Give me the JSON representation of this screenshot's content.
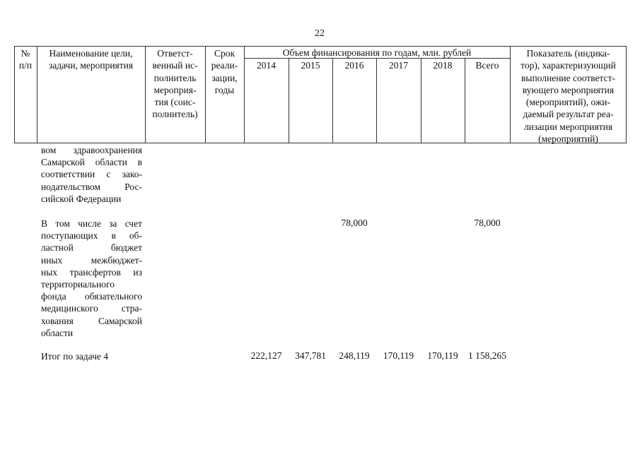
{
  "page_number": "22",
  "header": {
    "num": [
      "№",
      "п/п"
    ],
    "name": [
      "Наименование цели,",
      "задачи, мероприятия"
    ],
    "responsible": [
      "Ответст-",
      "венный ис-",
      "полнитель",
      "мероприя-",
      "тия (соис-",
      "полнитель)"
    ],
    "term": [
      "Срок",
      "реали-",
      "зации,",
      "годы"
    ],
    "funding": "Объем финансирования по годам, млн. рублей",
    "years": [
      "2014",
      "2015",
      "2016",
      "2017",
      "2018",
      "Всего"
    ],
    "indicator": [
      "Показатель (индика-",
      "тор), характеризующий",
      "выполнение соответст-",
      "вующего мероприятия",
      "(мероприятий), ожи-",
      "даемый результат реа-",
      "лизации мероприятия",
      "(мероприятий)"
    ]
  },
  "rows": [
    {
      "lines": [
        "вом здравоохранения",
        "Самарской области в",
        "соответствии с зако-",
        "нодательством Рос-",
        "сийской Федерации"
      ],
      "values": [
        "",
        "",
        "",
        "",
        "",
        ""
      ]
    },
    {
      "lines": [
        "В том числе за счет",
        "поступающих в об-",
        "ластной бюджет",
        "иных межбюджет-",
        "ных трансфертов из",
        "территориального",
        "фонда обязательного",
        "медицинского стра-",
        "хования Самарской",
        "области"
      ],
      "values": [
        "",
        "",
        "78,000",
        "",
        "",
        "78,000"
      ]
    },
    {
      "lines": [
        "Итог по задаче 4"
      ],
      "values": [
        "222,127",
        "347,781",
        "248,119",
        "170,119",
        "170,119",
        "1 158,265"
      ]
    }
  ]
}
